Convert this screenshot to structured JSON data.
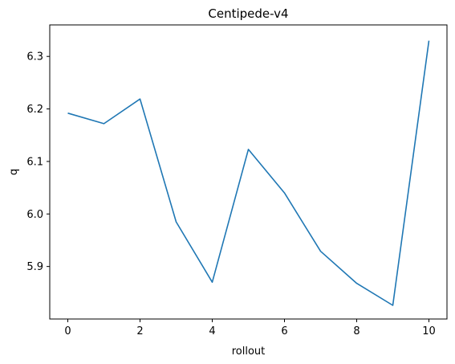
{
  "chart_data": {
    "type": "line",
    "title": "Centipede-v4",
    "xlabel": "rollout",
    "ylabel": "q",
    "xlim": [
      -0.5,
      10.5
    ],
    "ylim": [
      5.8,
      6.36
    ],
    "xticks": [
      0,
      2,
      4,
      6,
      8,
      10
    ],
    "xtick_labels": [
      "0",
      "2",
      "4",
      "6",
      "8",
      "10"
    ],
    "yticks": [
      5.9,
      6.0,
      6.1,
      6.2,
      6.3
    ],
    "ytick_labels": [
      "5.9",
      "6.0",
      "6.1",
      "6.2",
      "6.3"
    ],
    "grid": false,
    "series": [
      {
        "color": "#1f77b4",
        "x": [
          0,
          1,
          2,
          3,
          4,
          5,
          6,
          7,
          8,
          9,
          10
        ],
        "y": [
          6.192,
          6.172,
          6.219,
          5.985,
          5.87,
          6.123,
          6.04,
          5.929,
          5.868,
          5.826,
          6.33
        ]
      }
    ]
  }
}
